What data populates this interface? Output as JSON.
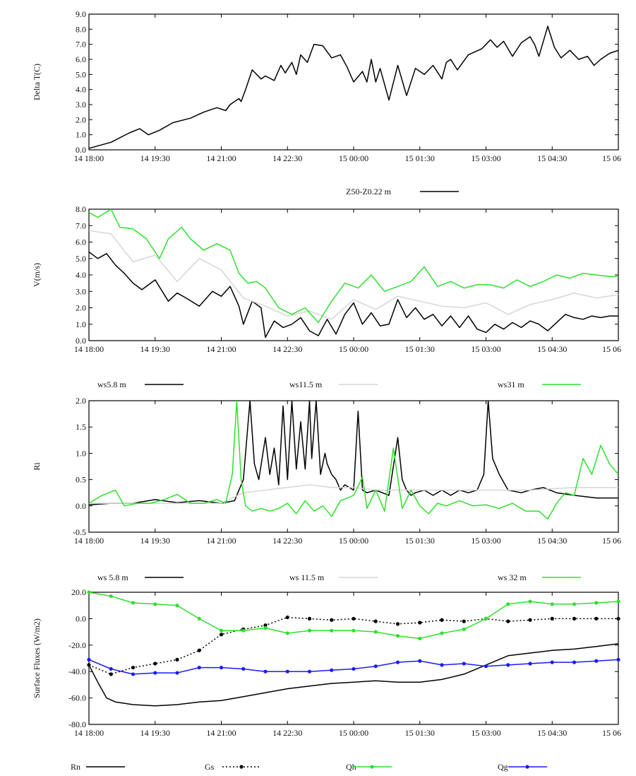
{
  "chart_data": [
    {
      "type": "line",
      "ylabel": "Delta T(C)",
      "ylim": [
        0,
        9
      ],
      "yticks": [
        "0.0",
        "1.0",
        "2.0",
        "3.0",
        "4.0",
        "5.0",
        "6.0",
        "7.0",
        "8.0",
        "9.0"
      ],
      "xticks": [
        "14 18:00",
        "14 19:30",
        "14 21:00",
        "14 22:30",
        "15 00:00",
        "15 01:30",
        "15 03:00",
        "15 04:30",
        "15 06"
      ],
      "xlim_hours": [
        0,
        12
      ],
      "series": [
        {
          "name": "Z50-Z0.22 m",
          "color": "#000000",
          "x": [
            0,
            0.5,
            0.9,
            1.15,
            1.35,
            1.6,
            1.9,
            2.3,
            2.6,
            2.9,
            3.1,
            3.2,
            3.4,
            3.45,
            3.55,
            3.7,
            3.9,
            4.0,
            4.2,
            4.35,
            4.45,
            4.6,
            4.7,
            4.8,
            4.95,
            5.1,
            5.3,
            5.5,
            5.7,
            5.85,
            6.0,
            6.2,
            6.3,
            6.4,
            6.5,
            6.6,
            6.8,
            7.0,
            7.2,
            7.4,
            7.6,
            7.8,
            8.0,
            8.1,
            8.2,
            8.35,
            8.6,
            8.9,
            9.1,
            9.25,
            9.4,
            9.6,
            9.8,
            10.0,
            10.1,
            10.2,
            10.4,
            10.55,
            10.7,
            10.9,
            11.1,
            11.3,
            11.45,
            11.6,
            11.8,
            12.0
          ],
          "y": [
            0.1,
            0.5,
            1.1,
            1.4,
            1.0,
            1.3,
            1.8,
            2.1,
            2.5,
            2.8,
            2.6,
            3.0,
            3.4,
            3.2,
            4.0,
            5.3,
            4.7,
            4.9,
            4.6,
            5.6,
            5.1,
            5.8,
            5.0,
            6.3,
            5.8,
            7.0,
            6.9,
            6.1,
            6.3,
            5.5,
            4.5,
            5.2,
            4.5,
            6.0,
            4.5,
            5.4,
            3.3,
            5.6,
            3.6,
            5.4,
            5.0,
            5.6,
            4.7,
            5.8,
            6.0,
            5.3,
            6.3,
            6.7,
            7.3,
            6.8,
            7.2,
            6.2,
            7.1,
            7.5,
            7.0,
            6.2,
            8.2,
            6.8,
            6.1,
            6.6,
            6.0,
            6.2,
            5.6,
            6.0,
            6.4,
            6.6
          ]
        }
      ]
    },
    {
      "type": "line",
      "ylabel": "V(m/s)",
      "ylim": [
        0,
        8
      ],
      "yticks": [
        "0.0",
        "1.0",
        "2.0",
        "3.0",
        "4.0",
        "5.0",
        "6.0",
        "7.0",
        "8.0"
      ],
      "xticks": [
        "14 18:00",
        "14 19:30",
        "14 21:00",
        "14 22:30",
        "15 00:00",
        "15 01:30",
        "15 03:00",
        "15 04:30",
        "15 06"
      ],
      "xlim_hours": [
        0,
        12
      ],
      "series": [
        {
          "name": "ws5.8 m",
          "color": "#000000",
          "x": [
            0,
            0.2,
            0.4,
            0.6,
            0.8,
            1.0,
            1.2,
            1.5,
            1.8,
            2.0,
            2.2,
            2.5,
            2.8,
            3.0,
            3.2,
            3.4,
            3.5,
            3.7,
            3.9,
            4.0,
            4.2,
            4.4,
            4.6,
            4.8,
            5.0,
            5.2,
            5.4,
            5.6,
            5.8,
            6.0,
            6.2,
            6.4,
            6.6,
            6.8,
            7.0,
            7.2,
            7.4,
            7.6,
            7.8,
            8.0,
            8.2,
            8.4,
            8.6,
            8.8,
            9.0,
            9.2,
            9.4,
            9.6,
            9.8,
            10.0,
            10.2,
            10.4,
            10.6,
            10.8,
            11.0,
            11.2,
            11.4,
            11.6,
            11.8,
            12.0
          ],
          "y": [
            5.4,
            5.0,
            5.3,
            4.6,
            4.1,
            3.5,
            3.1,
            3.7,
            2.4,
            2.9,
            2.6,
            2.1,
            3.0,
            2.7,
            3.3,
            2.1,
            1.0,
            2.4,
            2.0,
            0.2,
            1.2,
            0.8,
            1.0,
            1.4,
            0.6,
            0.3,
            1.3,
            0.4,
            1.6,
            2.3,
            1.0,
            1.7,
            0.9,
            1.0,
            2.5,
            1.4,
            2.0,
            1.3,
            1.6,
            0.9,
            1.5,
            0.8,
            1.5,
            0.7,
            0.5,
            1.0,
            0.7,
            1.1,
            0.8,
            1.2,
            1.0,
            0.6,
            1.1,
            1.6,
            1.4,
            1.3,
            1.5,
            1.4,
            1.5,
            1.5
          ]
        },
        {
          "name": "ws11.5 m",
          "color": "#d6d6d6",
          "x": [
            0,
            0.5,
            1.0,
            1.5,
            2.0,
            2.5,
            3.0,
            3.5,
            4.0,
            4.5,
            5.0,
            5.5,
            6.0,
            6.5,
            7.0,
            7.5,
            8.0,
            8.5,
            9.0,
            9.5,
            10.0,
            10.5,
            11.0,
            11.5,
            12.0
          ],
          "y": [
            6.7,
            6.5,
            4.8,
            5.2,
            3.6,
            5.0,
            4.3,
            2.6,
            2.1,
            1.5,
            1.8,
            1.3,
            2.5,
            1.9,
            2.7,
            2.4,
            2.1,
            2.0,
            2.3,
            1.6,
            2.2,
            2.5,
            2.9,
            2.6,
            2.8
          ]
        },
        {
          "name": "ws31 m",
          "color": "#2ee02e",
          "x": [
            0,
            0.2,
            0.5,
            0.7,
            1.0,
            1.3,
            1.6,
            1.8,
            2.1,
            2.3,
            2.6,
            2.9,
            3.2,
            3.4,
            3.6,
            3.8,
            4.0,
            4.3,
            4.6,
            4.9,
            5.2,
            5.5,
            5.8,
            6.1,
            6.4,
            6.7,
            7.0,
            7.3,
            7.6,
            7.9,
            8.2,
            8.5,
            8.8,
            9.1,
            9.4,
            9.7,
            10.0,
            10.3,
            10.6,
            10.9,
            11.2,
            11.5,
            11.8,
            12.0
          ],
          "y": [
            7.8,
            7.5,
            8.0,
            6.9,
            6.8,
            6.2,
            5.0,
            6.2,
            6.9,
            6.2,
            5.5,
            5.9,
            5.5,
            4.1,
            3.5,
            3.6,
            3.2,
            2.0,
            1.6,
            2.0,
            1.1,
            2.4,
            3.5,
            3.2,
            4.0,
            3.0,
            3.3,
            3.6,
            4.5,
            3.3,
            3.6,
            3.2,
            3.4,
            3.4,
            3.2,
            3.7,
            3.3,
            3.6,
            4.0,
            3.8,
            4.1,
            4.0,
            3.9,
            3.9
          ]
        }
      ]
    },
    {
      "type": "line",
      "ylabel": "Ri",
      "ylim": [
        -0.5,
        2.0
      ],
      "yticks": [
        "-0.5",
        "0.0",
        "0.5",
        "1.0",
        "1.5",
        "2.0"
      ],
      "xticks": [
        "14 18:00",
        "14 19:30",
        "14 21:00",
        "14 22:30",
        "15 00:00",
        "15 01:30",
        "15 03:00",
        "15 04:30",
        "15 06"
      ],
      "xlim_hours": [
        0,
        12
      ],
      "series": [
        {
          "name": "ws 5.8 m",
          "color": "#000000",
          "x": [
            0,
            0.5,
            1.0,
            1.5,
            2.0,
            2.5,
            3.0,
            3.3,
            3.5,
            3.65,
            3.75,
            3.85,
            4.0,
            4.1,
            4.2,
            4.3,
            4.4,
            4.5,
            4.6,
            4.7,
            4.8,
            4.9,
            5.0,
            5.05,
            5.15,
            5.25,
            5.35,
            5.4,
            5.5,
            5.6,
            5.7,
            5.8,
            6.0,
            6.1,
            6.2,
            6.3,
            6.5,
            6.8,
            7.0,
            7.1,
            7.2,
            7.3,
            7.4,
            7.6,
            7.8,
            8.0,
            8.2,
            8.4,
            8.6,
            8.8,
            8.95,
            9.05,
            9.15,
            9.3,
            9.5,
            9.8,
            10.0,
            10.3,
            10.6,
            11.0,
            11.5,
            12.0
          ],
          "y": [
            0.02,
            0.05,
            0.05,
            0.12,
            0.06,
            0.1,
            0.05,
            0.1,
            0.5,
            2.0,
            0.8,
            0.5,
            1.3,
            0.6,
            1.1,
            0.4,
            1.9,
            0.5,
            2.0,
            0.7,
            1.6,
            0.7,
            2.0,
            0.9,
            2.0,
            0.6,
            1.0,
            0.8,
            0.6,
            0.5,
            0.3,
            0.4,
            0.3,
            1.8,
            0.3,
            0.25,
            0.3,
            0.2,
            1.3,
            0.5,
            0.3,
            0.2,
            0.25,
            0.3,
            0.2,
            0.3,
            0.2,
            0.3,
            0.25,
            0.3,
            0.6,
            2.0,
            0.9,
            0.6,
            0.3,
            0.25,
            0.3,
            0.35,
            0.25,
            0.2,
            0.15,
            0.15
          ]
        },
        {
          "name": "ws 11.5 m",
          "color": "#d6d6d6",
          "x": [
            0,
            1.0,
            2.0,
            3.0,
            3.5,
            4.0,
            4.5,
            5.0,
            5.5,
            6.0,
            6.5,
            7.0,
            7.5,
            8.0,
            9.0,
            10.0,
            11.0,
            12.0
          ],
          "y": [
            0.05,
            0.05,
            0.05,
            0.05,
            0.25,
            0.3,
            0.35,
            0.4,
            0.35,
            0.35,
            0.3,
            0.3,
            0.3,
            0.3,
            0.3,
            0.3,
            0.35,
            0.35
          ]
        },
        {
          "name": "ws 32 m",
          "color": "#2ee02e",
          "x": [
            0,
            0.3,
            0.6,
            0.8,
            1.1,
            1.4,
            1.7,
            2.0,
            2.3,
            2.6,
            2.9,
            3.1,
            3.25,
            3.35,
            3.45,
            3.55,
            3.7,
            3.9,
            4.1,
            4.3,
            4.5,
            4.7,
            4.9,
            5.1,
            5.3,
            5.5,
            5.7,
            6.0,
            6.2,
            6.3,
            6.5,
            6.7,
            6.9,
            7.1,
            7.3,
            7.5,
            7.7,
            7.9,
            8.1,
            8.4,
            8.7,
            9.0,
            9.3,
            9.6,
            9.9,
            10.2,
            10.4,
            10.6,
            10.8,
            11.0,
            11.2,
            11.4,
            11.6,
            11.8,
            12.0
          ],
          "y": [
            0.05,
            0.2,
            0.3,
            0.0,
            0.05,
            0.05,
            0.12,
            0.22,
            0.05,
            0.05,
            0.12,
            0.05,
            0.6,
            2.0,
            0.5,
            0.0,
            -0.1,
            -0.05,
            -0.1,
            -0.05,
            0.05,
            -0.15,
            0.1,
            -0.1,
            0.0,
            -0.2,
            0.1,
            0.2,
            0.55,
            -0.05,
            0.3,
            -0.1,
            1.1,
            -0.05,
            0.3,
            0.0,
            -0.15,
            0.05,
            0.0,
            0.1,
            0.0,
            0.02,
            -0.05,
            0.05,
            -0.1,
            -0.1,
            -0.25,
            0.05,
            0.25,
            0.2,
            0.9,
            0.6,
            1.15,
            0.8,
            0.6
          ]
        }
      ]
    },
    {
      "type": "line",
      "ylabel": "Surface Fluxes (W/m2)",
      "ylim": [
        -80,
        20
      ],
      "yticks": [
        "-80.0",
        "-60.0",
        "-40.0",
        "-20.0",
        "0.0",
        "20.0"
      ],
      "xticks": [
        "14 18:00",
        "14 19:30",
        "14 21:00",
        "14 22:30",
        "15 00:00",
        "15 01:30",
        "15 03:00",
        "15 04:30",
        "15 06"
      ],
      "xlim_hours": [
        0,
        12
      ],
      "series": [
        {
          "name": "Rn",
          "color": "#000000",
          "marker": false,
          "x": [
            0,
            0.2,
            0.4,
            0.6,
            1.0,
            1.5,
            2.0,
            2.5,
            3.0,
            3.5,
            4.0,
            4.5,
            5.0,
            5.5,
            6.0,
            6.5,
            7.0,
            7.5,
            8.0,
            8.5,
            9.0,
            9.5,
            10.0,
            10.5,
            11.0,
            11.5,
            12.0
          ],
          "y": [
            -35,
            -48,
            -60,
            -63,
            -65,
            -66,
            -65,
            -63,
            -62,
            -59,
            -56,
            -53,
            -51,
            -49,
            -48,
            -47,
            -48,
            -48,
            -46,
            -42,
            -35,
            -28,
            -26,
            -24,
            -23,
            -21,
            -19
          ]
        },
        {
          "name": "Gs",
          "color": "#000000",
          "dashed": true,
          "marker": true,
          "x": [
            0,
            0.5,
            1.0,
            1.5,
            2.0,
            2.5,
            3.0,
            3.5,
            4.0,
            4.5,
            5.0,
            5.5,
            6.0,
            6.5,
            7.0,
            7.5,
            8.0,
            8.5,
            9.0,
            9.5,
            10.0,
            10.5,
            11.0,
            11.5,
            12.0
          ],
          "y": [
            -35,
            -42,
            -37,
            -34,
            -31,
            -24,
            -12,
            -8,
            -5,
            1,
            0,
            -1,
            0,
            -2,
            -4,
            -3,
            -1,
            -2,
            0,
            -2,
            -1,
            0,
            0,
            0,
            0
          ]
        },
        {
          "name": "Qh",
          "color": "#2ee02e",
          "marker": true,
          "x": [
            0,
            0.5,
            1.0,
            1.5,
            2.0,
            2.5,
            3.0,
            3.5,
            4.0,
            4.5,
            5.0,
            5.5,
            6.0,
            6.5,
            7.0,
            7.5,
            8.0,
            8.5,
            9.0,
            9.5,
            10.0,
            10.5,
            11.0,
            11.5,
            12.0
          ],
          "y": [
            20,
            17,
            12,
            11,
            10,
            0,
            -9,
            -9,
            -7,
            -11,
            -9,
            -9,
            -9,
            -10,
            -13,
            -15,
            -11,
            -8,
            0,
            11,
            13,
            11,
            11,
            12,
            13
          ]
        },
        {
          "name": "Qg",
          "color": "#1a1aff",
          "marker": true,
          "x": [
            0,
            0.5,
            1.0,
            1.5,
            2.0,
            2.5,
            3.0,
            3.5,
            4.0,
            4.5,
            5.0,
            5.5,
            6.0,
            6.5,
            7.0,
            7.5,
            8.0,
            8.5,
            9.0,
            9.5,
            10.0,
            10.5,
            11.0,
            11.5,
            12.0
          ],
          "y": [
            -31,
            -38,
            -42,
            -41,
            -41,
            -37,
            -37,
            -38,
            -40,
            -40,
            -40,
            -39,
            -38,
            -36,
            -33,
            -32,
            -35,
            -34,
            -36,
            -35,
            -34,
            -33,
            -33,
            -32,
            -31
          ]
        }
      ]
    }
  ],
  "legends": [
    {
      "items": [
        {
          "label": "Z50-Z0.22 m",
          "color": "#000000"
        }
      ]
    },
    {
      "items": [
        {
          "label": "ws5.8 m",
          "color": "#000000"
        },
        {
          "label": "ws11.5 m",
          "color": "#d6d6d6"
        },
        {
          "label": "ws31 m",
          "color": "#2ee02e"
        }
      ]
    },
    {
      "items": [
        {
          "label": "ws 5.8 m",
          "color": "#000000"
        },
        {
          "label": "ws 11.5 m",
          "color": "#d6d6d6"
        },
        {
          "label": "ws 32 m",
          "color": "#2ee02e"
        }
      ]
    },
    {
      "items": [
        {
          "label": "Rn",
          "color": "#000000"
        },
        {
          "label": "Gs",
          "color": "#000000"
        },
        {
          "label": "Qh",
          "color": "#2ee02e"
        },
        {
          "label": "Qg",
          "color": "#1a1aff"
        }
      ]
    }
  ]
}
